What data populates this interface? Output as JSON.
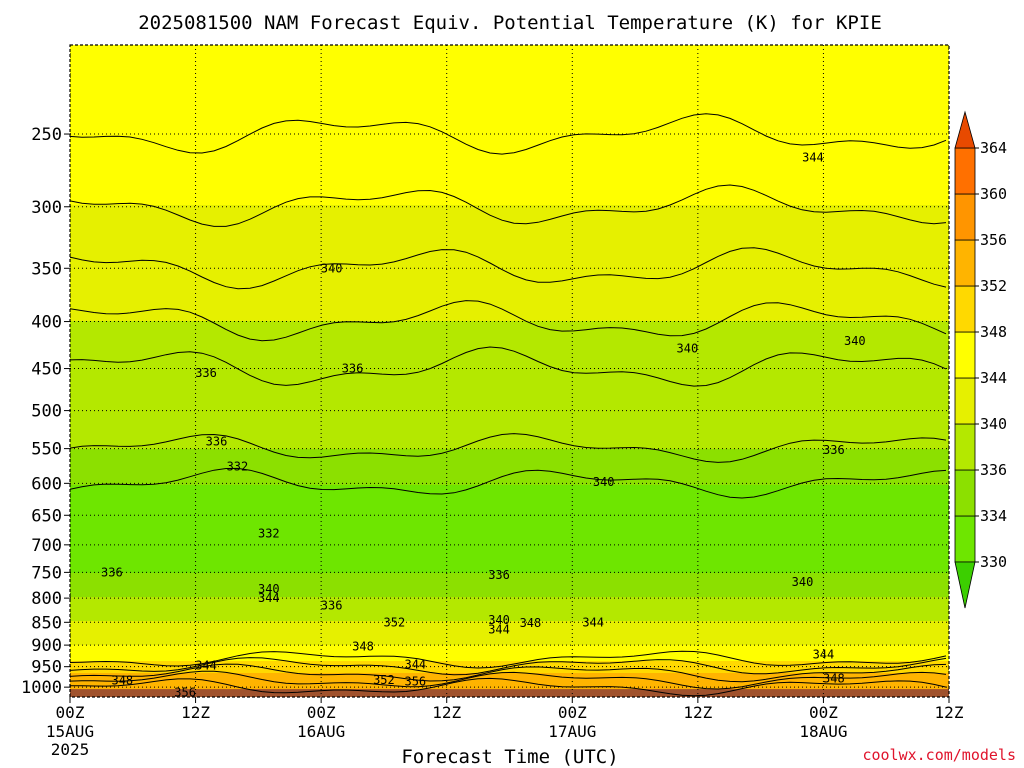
{
  "chart_data": {
    "type": "heatmap",
    "title": "2025081500 NAM Forecast Equiv. Potential Temperature (K) for KPIE",
    "xlabel": "Forecast Time (UTC)",
    "ylabel": "",
    "credit": "coolwx.com/models",
    "y_axis": {
      "scale": "log",
      "reversed": true,
      "range": [
        200,
        1025
      ],
      "ticks": [
        250,
        300,
        350,
        400,
        450,
        500,
        550,
        600,
        650,
        700,
        750,
        800,
        850,
        900,
        950,
        1000
      ],
      "unit": "hPa"
    },
    "x_axis": {
      "range_hours": [
        0,
        84
      ],
      "ticks": [
        {
          "hour": 0,
          "label": "00Z",
          "sub": "15AUG",
          "sub2": "2025"
        },
        {
          "hour": 12,
          "label": "12Z",
          "sub": "",
          "sub2": ""
        },
        {
          "hour": 24,
          "label": "00Z",
          "sub": "16AUG",
          "sub2": ""
        },
        {
          "hour": 36,
          "label": "12Z",
          "sub": "",
          "sub2": ""
        },
        {
          "hour": 48,
          "label": "00Z",
          "sub": "17AUG",
          "sub2": ""
        },
        {
          "hour": 60,
          "label": "12Z",
          "sub": "",
          "sub2": ""
        },
        {
          "hour": 72,
          "label": "00Z",
          "sub": "18AUG",
          "sub2": ""
        },
        {
          "hour": 84,
          "label": "12Z",
          "sub": "",
          "sub2": ""
        }
      ]
    },
    "grid": true,
    "colorbar": {
      "levels": [
        330,
        334,
        336,
        340,
        344,
        348,
        352,
        356,
        360,
        364
      ],
      "colors": [
        "#6ee600",
        "#8ce000",
        "#b4e800",
        "#e6f000",
        "#ffff00",
        "#ffd900",
        "#ffb400",
        "#ff9500",
        "#ff7000",
        "#f04f00"
      ],
      "low_extend_color": "#3ccf00",
      "high_extend_color": "#e84a00"
    },
    "profile": {
      "levels_hpa": [
        200,
        250,
        300,
        350,
        400,
        450,
        500,
        550,
        600,
        650,
        700,
        750,
        800,
        850,
        900,
        950,
        1000,
        1025
      ],
      "theta_e_k": [
        347,
        346,
        344,
        342,
        340,
        338,
        337,
        336,
        334,
        333,
        333,
        334,
        336,
        340,
        344,
        350,
        356,
        358
      ]
    },
    "contour_labels": [
      {
        "value": "344",
        "hour": 71,
        "hpa": 265
      },
      {
        "value": "340",
        "hour": 25,
        "hpa": 350
      },
      {
        "value": "340",
        "hour": 59,
        "hpa": 428
      },
      {
        "value": "340",
        "hour": 75,
        "hpa": 420
      },
      {
        "value": "336",
        "hour": 13,
        "hpa": 455
      },
      {
        "value": "336",
        "hour": 27,
        "hpa": 450
      },
      {
        "value": "336",
        "hour": 14,
        "hpa": 540
      },
      {
        "value": "336",
        "hour": 73,
        "hpa": 552
      },
      {
        "value": "332",
        "hour": 16,
        "hpa": 575
      },
      {
        "value": "340",
        "hour": 51,
        "hpa": 598
      },
      {
        "value": "332",
        "hour": 19,
        "hpa": 680
      },
      {
        "value": "336",
        "hour": 4,
        "hpa": 750
      },
      {
        "value": "336",
        "hour": 41,
        "hpa": 755
      },
      {
        "value": "340",
        "hour": 70,
        "hpa": 768
      },
      {
        "value": "340",
        "hour": 19,
        "hpa": 782
      },
      {
        "value": "344",
        "hour": 19,
        "hpa": 800
      },
      {
        "value": "336",
        "hour": 25,
        "hpa": 815
      },
      {
        "value": "352",
        "hour": 31,
        "hpa": 850
      },
      {
        "value": "340",
        "hour": 41,
        "hpa": 845
      },
      {
        "value": "348",
        "hour": 44,
        "hpa": 852
      },
      {
        "value": "344",
        "hour": 50,
        "hpa": 850
      },
      {
        "value": "344",
        "hour": 41,
        "hpa": 865
      },
      {
        "value": "348",
        "hour": 28,
        "hpa": 903
      },
      {
        "value": "344",
        "hour": 33,
        "hpa": 945
      },
      {
        "value": "344",
        "hour": 13,
        "hpa": 947
      },
      {
        "value": "344",
        "hour": 72,
        "hpa": 922
      },
      {
        "value": "348",
        "hour": 5,
        "hpa": 983
      },
      {
        "value": "352",
        "hour": 30,
        "hpa": 982
      },
      {
        "value": "356",
        "hour": 33,
        "hpa": 986
      },
      {
        "value": "348",
        "hour": 73,
        "hpa": 978
      },
      {
        "value": "356",
        "hour": 11,
        "hpa": 1013
      }
    ]
  }
}
